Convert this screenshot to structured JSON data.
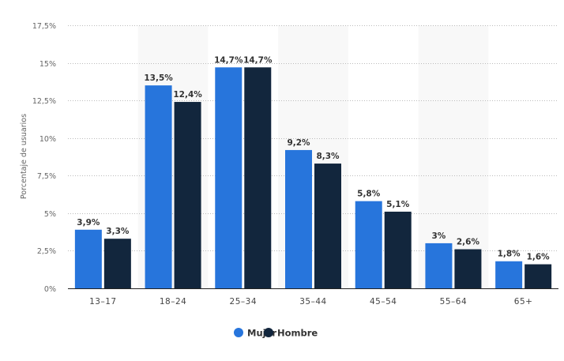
{
  "chart_data": {
    "type": "bar",
    "title": "",
    "xlabel": "",
    "ylabel": "Porcentaje de usuarios",
    "ylim": [
      0,
      17.5
    ],
    "yticks": [
      0,
      2.5,
      5,
      7.5,
      10,
      12.5,
      15,
      17.5
    ],
    "ytick_labels": [
      "0%",
      "2,5%",
      "5%",
      "7,5%",
      "10%",
      "12,5%",
      "15%",
      "17,5%"
    ],
    "categories": [
      "13-17",
      "18-24",
      "25-34",
      "35-44",
      "45-54",
      "55-64",
      "65+"
    ],
    "series": [
      {
        "name": "Mujer",
        "color": "#2775dc",
        "values": [
          3.9,
          13.5,
          14.7,
          9.2,
          5.8,
          3.0,
          1.8
        ],
        "labels": [
          "3,9%",
          "13,5%",
          "14,7%",
          "9,2%",
          "5,8%",
          "3%",
          "1,8%"
        ]
      },
      {
        "name": "Hombre",
        "color": "#12263d",
        "values": [
          3.3,
          12.4,
          14.7,
          8.3,
          5.1,
          2.6,
          1.6
        ],
        "labels": [
          "3,3%",
          "12,4%",
          "14,7%",
          "8,3%",
          "5,1%",
          "2,6%",
          "1,6%"
        ]
      }
    ],
    "grid": true,
    "legend_position": "bottom"
  },
  "legend": {
    "items": [
      {
        "label": "Mujer",
        "color": "#2775dc"
      },
      {
        "label": "Hombre",
        "color": "#12263d"
      }
    ]
  }
}
